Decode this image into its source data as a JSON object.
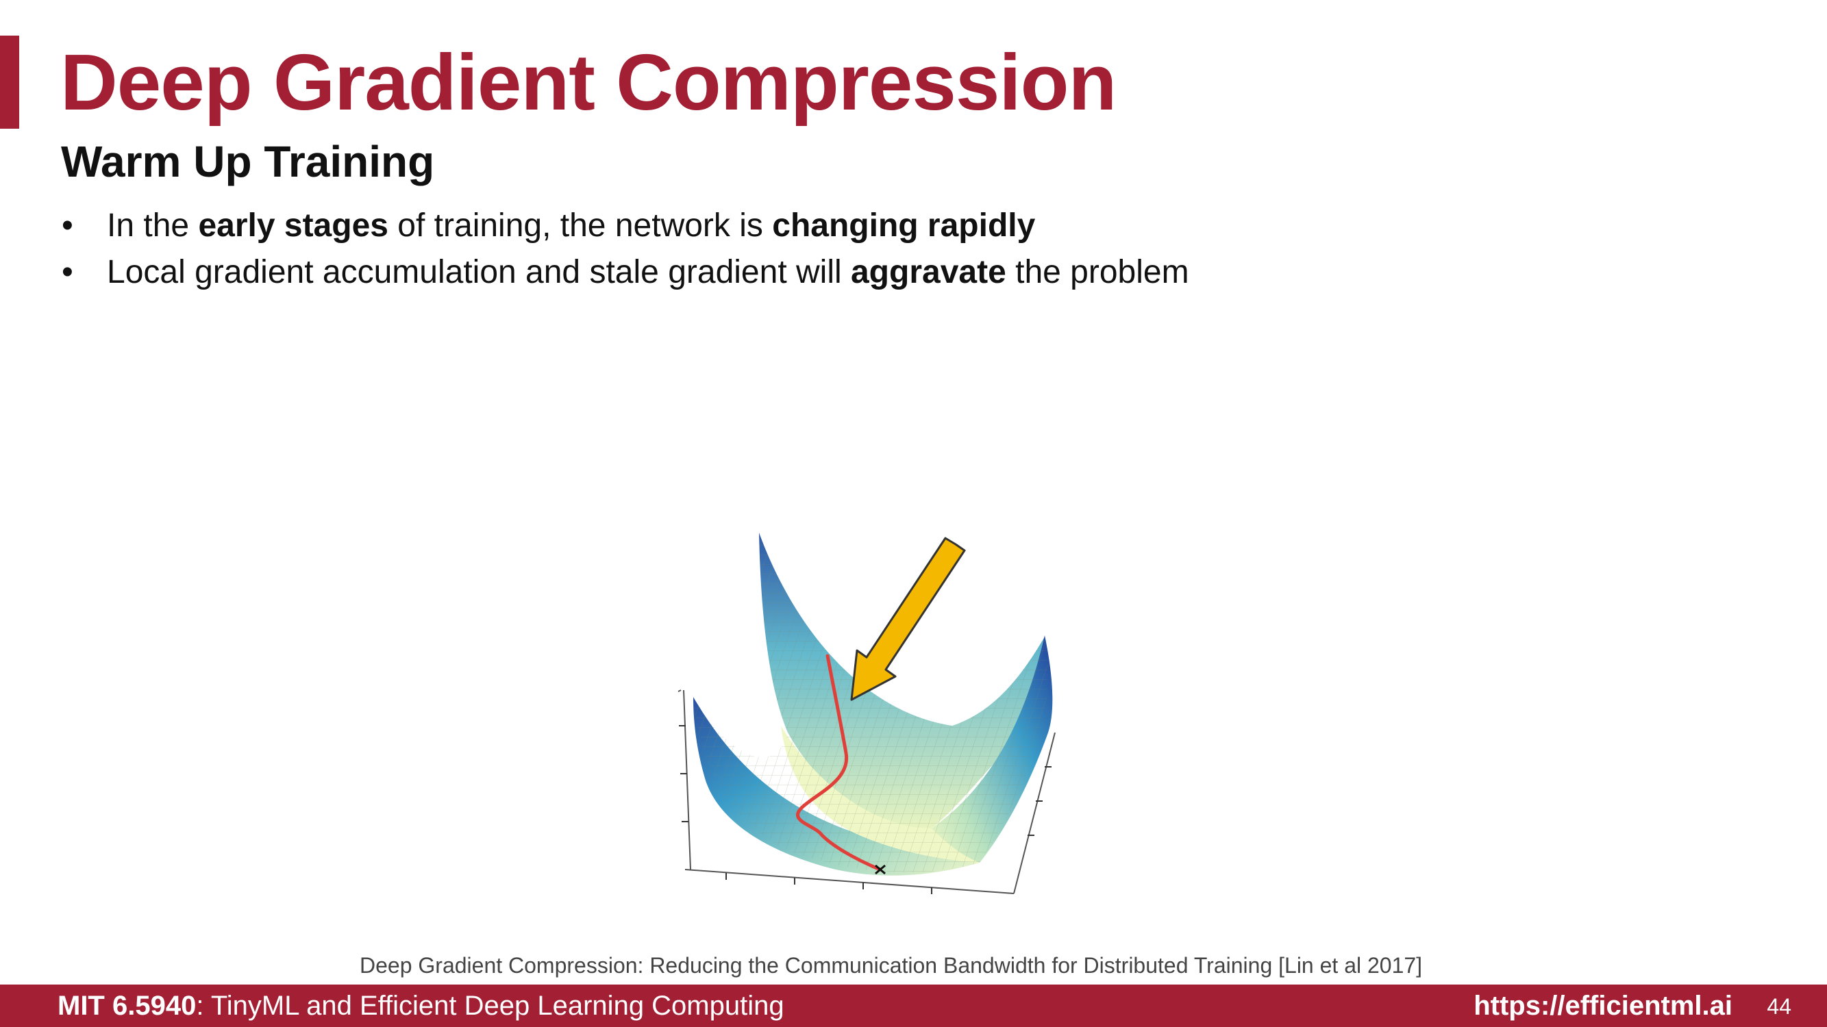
{
  "slide": {
    "title": "Deep Gradient Compression",
    "subtitle": "Warm Up Training",
    "bullets": [
      {
        "marker": "•",
        "parts": [
          "In the ",
          "early stages",
          " of training, the network is ",
          "changing rapidly"
        ]
      },
      {
        "marker": "•",
        "parts": [
          "Local gradient accumulation and stale gradient will ",
          "aggravate",
          " the problem"
        ]
      }
    ],
    "figure_icon": "loss-surface-icon",
    "arrow_icon": "yellow-arrow-icon",
    "citation": "Deep Gradient Compression: Reducing the Communication Bandwidth for Distributed Training [Lin et al 2017]"
  },
  "footer": {
    "course_code": "MIT 6.5940",
    "course_name": ": TinyML and Efficient Deep Learning Computing",
    "url": "https://efficientml.ai",
    "page_number": "44"
  },
  "colors": {
    "accent": "#a31f34",
    "arrow": "#f5b800",
    "trajectory": "#e0403a"
  }
}
